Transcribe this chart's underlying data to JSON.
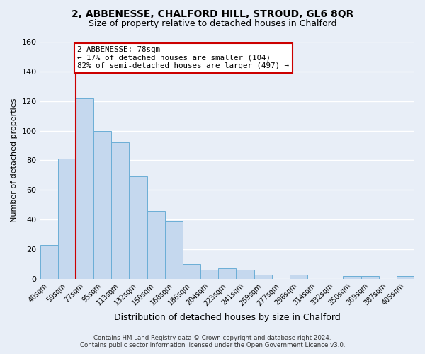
{
  "title": "2, ABBENESSE, CHALFORD HILL, STROUD, GL6 8QR",
  "subtitle": "Size of property relative to detached houses in Chalford",
  "xlabel": "Distribution of detached houses by size in Chalford",
  "ylabel": "Number of detached properties",
  "bar_labels": [
    "40sqm",
    "59sqm",
    "77sqm",
    "95sqm",
    "113sqm",
    "132sqm",
    "150sqm",
    "168sqm",
    "186sqm",
    "204sqm",
    "223sqm",
    "241sqm",
    "259sqm",
    "277sqm",
    "296sqm",
    "314sqm",
    "332sqm",
    "350sqm",
    "369sqm",
    "387sqm",
    "405sqm"
  ],
  "bar_values": [
    23,
    81,
    122,
    100,
    92,
    69,
    46,
    39,
    10,
    6,
    7,
    6,
    3,
    0,
    3,
    0,
    0,
    2,
    2,
    0,
    2
  ],
  "bar_color": "#c5d8ee",
  "bar_edge_color": "#6baed6",
  "vline_x_index": 2,
  "vline_color": "#cc0000",
  "ylim": [
    0,
    160
  ],
  "yticks": [
    0,
    20,
    40,
    60,
    80,
    100,
    120,
    140,
    160
  ],
  "annotation_text": "2 ABBENESSE: 78sqm\n← 17% of detached houses are smaller (104)\n82% of semi-detached houses are larger (497) →",
  "annotation_box_color": "#ffffff",
  "annotation_box_edge": "#cc0000",
  "footer_line1": "Contains HM Land Registry data © Crown copyright and database right 2024.",
  "footer_line2": "Contains public sector information licensed under the Open Government Licence v3.0.",
  "background_color": "#e8eef7",
  "grid_color": "#ffffff",
  "title_fontsize": 10,
  "subtitle_fontsize": 9,
  "tick_label_fontsize": 7,
  "ylabel_fontsize": 8,
  "xlabel_fontsize": 9
}
